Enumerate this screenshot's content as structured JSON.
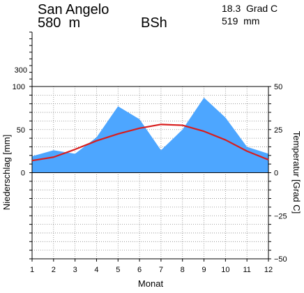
{
  "header": {
    "station": "San Angelo",
    "elevation": "580  m",
    "climate": "BSh",
    "mean_temp": "18.3  Grad C",
    "annual_precip": "519  mm"
  },
  "colors": {
    "precip_fill": "#4da6ff",
    "temp_line": "#d81e1e",
    "grid": "#888888"
  },
  "chart_data": {
    "type": "area",
    "title": "",
    "xlabel": "Monat",
    "ylabel": "Niederschlag [mm]",
    "y2label": "Temperatur [Grad C]",
    "categories": [
      1,
      2,
      3,
      4,
      5,
      6,
      7,
      8,
      9,
      10,
      11,
      12
    ],
    "x_ticks": [
      "1",
      "2",
      "3",
      "4",
      "5",
      "6",
      "7",
      "8",
      "9",
      "10",
      "11",
      "12"
    ],
    "ylim": [
      -100,
      100
    ],
    "y2lim": [
      -50,
      50
    ],
    "extra_scale_tick": "300",
    "y_ticks": [
      "100",
      "50",
      "0"
    ],
    "y2_ticks": [
      "50",
      "25",
      "0",
      "−25",
      "−50"
    ],
    "grid": true,
    "series": [
      {
        "values": [
          19,
          26,
          22,
          41,
          77,
          62,
          26,
          50,
          87,
          64,
          30,
          22
        ],
        "kind": "area"
      },
      {
        "values": [
          7.0,
          9.0,
          13.5,
          18.5,
          22.5,
          25.8,
          28.0,
          27.5,
          24.0,
          19.0,
          12.5,
          7.5
        ],
        "kind": "line"
      }
    ]
  }
}
